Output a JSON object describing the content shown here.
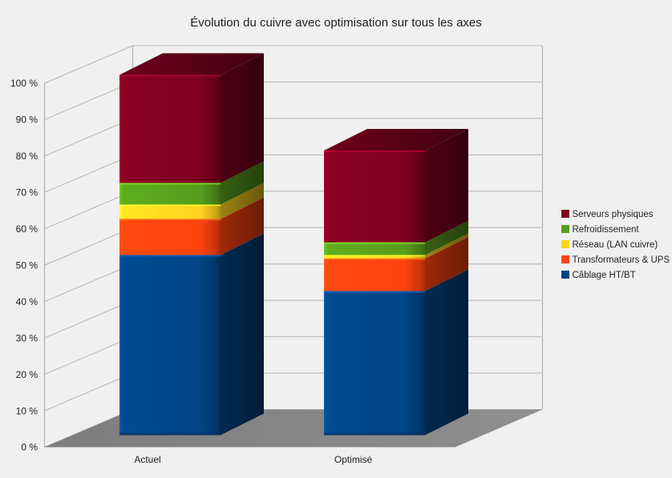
{
  "title": "Évolution du cuivre avec optimisation sur tous les axes",
  "chart_data": {
    "type": "bar",
    "variant": "3d-stacked-column",
    "title": "Évolution du cuivre avec optimisation sur tous les axes",
    "categories": [
      "Actuel",
      "Optimisé"
    ],
    "series": [
      {
        "name": "Câblage HT/BT",
        "color": "#004586",
        "values": [
          50,
          40
        ]
      },
      {
        "name": "Transformateurs & UPS",
        "color": "#FF420E",
        "values": [
          10,
          9
        ]
      },
      {
        "name": "Réseau (LAN cuivre)",
        "color": "#FFD320",
        "values": [
          4,
          1
        ]
      },
      {
        "name": "Refroidissement",
        "color": "#579D1C",
        "values": [
          6,
          3.5
        ]
      },
      {
        "name": "Serveurs physiques",
        "color": "#7E0021",
        "values": [
          30,
          25.5
        ]
      }
    ],
    "stack_totals": [
      100,
      79
    ],
    "ylim": [
      0,
      100
    ],
    "ytick_step": 10,
    "yticks": [
      "0 %",
      "10 %",
      "20 %",
      "30 %",
      "40 %",
      "50 %",
      "60 %",
      "70 %",
      "80 %",
      "90 %",
      "100 %"
    ],
    "grid": "horizontal",
    "legend_position": "right",
    "legend_order_top_to_bottom": [
      "Serveurs physiques",
      "Refroidissement",
      "Réseau (LAN cuivre)",
      "Transformateurs & UPS",
      "Câblage HT/BT"
    ]
  },
  "colors": {
    "background": "#F0F0F0",
    "gridline": "#B3B3B3",
    "floor": "#888888",
    "text": "#222222"
  }
}
